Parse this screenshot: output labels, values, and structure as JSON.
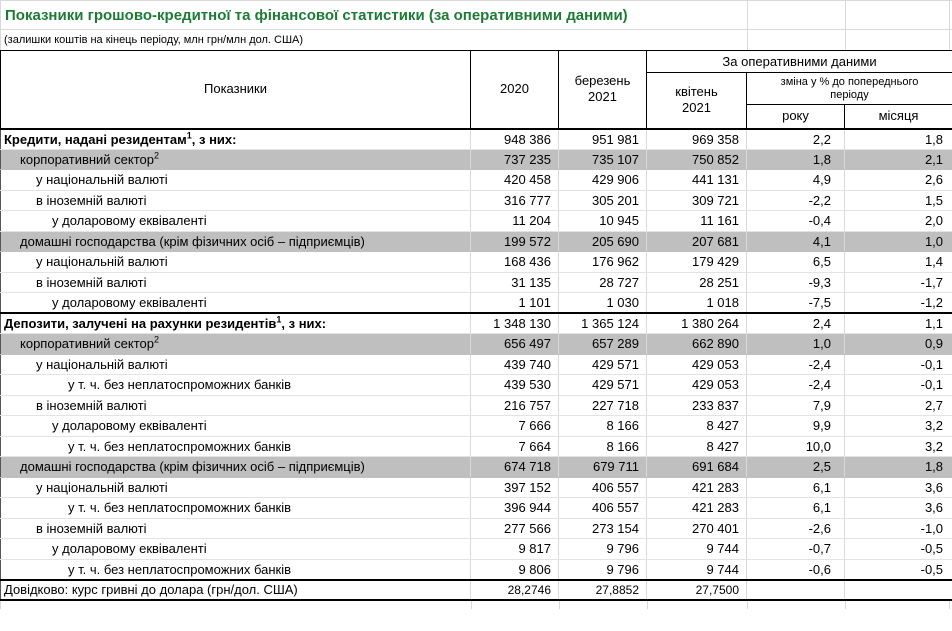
{
  "title": "Показники грошово-кредитної та фінансової статистики (за оперативними даними)",
  "subtitle": "(залишки коштів на кінець періоду, млн грн/млн дол. США)",
  "colors": {
    "title_green": "#1e7b36",
    "band_gray": "#bfbfbf",
    "grid_light": "#d9d9d9",
    "border_dark": "#000000"
  },
  "header": {
    "indicators": "Показники",
    "col_2020": "2020",
    "col_march": "березень\n2021",
    "operational_group": "За оперативними даними",
    "col_april": "квітень\n2021",
    "change_group": "зміна у % до попереднього\nперіоду",
    "col_year": "року",
    "col_month": "місяця"
  },
  "rows": [
    {
      "style": "section",
      "label": "Кредити, надані резидентам",
      "sup": "1",
      "suffix": ", з них:",
      "values": [
        "948 386",
        "951 981",
        "969 358",
        "2,2",
        "1,8"
      ]
    },
    {
      "style": "band",
      "label": "корпоративний сектор",
      "sup": "2",
      "suffix": "",
      "values": [
        "737 235",
        "735 107",
        "750 852",
        "1,8",
        "2,1"
      ]
    },
    {
      "style": "l2",
      "label": "у національній валюті",
      "values": [
        "420 458",
        "429 906",
        "441 131",
        "4,9",
        "2,6"
      ]
    },
    {
      "style": "l2",
      "label": "в іноземній валюті",
      "values": [
        "316 777",
        "305 201",
        "309 721",
        "-2,2",
        "1,5"
      ]
    },
    {
      "style": "l3",
      "label": "у доларовому еквіваленті",
      "values": [
        "11 204",
        "10 945",
        "11 161",
        "-0,4",
        "2,0"
      ]
    },
    {
      "style": "band",
      "label": "домашні господарства (крім фізичних осіб – підприємців)",
      "values": [
        "199 572",
        "205 690",
        "207 681",
        "4,1",
        "1,0"
      ]
    },
    {
      "style": "l2",
      "label": "у національній валюті",
      "values": [
        "168 436",
        "176 962",
        "179 429",
        "6,5",
        "1,4"
      ]
    },
    {
      "style": "l2",
      "label": "в іноземній валюті",
      "values": [
        "31 135",
        "28 727",
        "28 251",
        "-9,3",
        "-1,7"
      ]
    },
    {
      "style": "l3",
      "label": "у доларовому еквіваленті",
      "values": [
        "1 101",
        "1 030",
        "1 018",
        "-7,5",
        "-1,2"
      ]
    },
    {
      "style": "section",
      "label": "Депозити, залучені на рахунки резидентів",
      "sup": "1",
      "suffix": ", з них:",
      "values": [
        "1 348 130",
        "1 365 124",
        "1 380 264",
        "2,4",
        "1,1"
      ]
    },
    {
      "style": "band",
      "label": "корпоративний сектор",
      "sup": "2",
      "suffix": "",
      "values": [
        "656 497",
        "657 289",
        "662 890",
        "1,0",
        "0,9"
      ]
    },
    {
      "style": "l2",
      "label": "у національній валюті",
      "values": [
        "439 740",
        "429 571",
        "429 053",
        "-2,4",
        "-0,1"
      ]
    },
    {
      "style": "l4",
      "label": "у т. ч. без неплатоспроможних банків",
      "values": [
        "439 530",
        "429 571",
        "429 053",
        "-2,4",
        "-0,1"
      ]
    },
    {
      "style": "l2",
      "label": "в іноземній валюті",
      "values": [
        "216 757",
        "227 718",
        "233 837",
        "7,9",
        "2,7"
      ]
    },
    {
      "style": "l3",
      "label": "у доларовому еквіваленті",
      "values": [
        "7 666",
        "8 166",
        "8 427",
        "9,9",
        "3,2"
      ]
    },
    {
      "style": "l4",
      "label": "у т. ч. без неплатоспроможних банків",
      "values": [
        "7 664",
        "8 166",
        "8 427",
        "10,0",
        "3,2"
      ]
    },
    {
      "style": "band",
      "label": "домашні господарства (крім фізичних осіб – підприємців)",
      "values": [
        "674 718",
        "679 711",
        "691 684",
        "2,5",
        "1,8"
      ]
    },
    {
      "style": "l2",
      "label": "у національній валюті",
      "values": [
        "397 152",
        "406 557",
        "421 283",
        "6,1",
        "3,6"
      ]
    },
    {
      "style": "l4",
      "label": "у т. ч. без неплатоспроможних банків",
      "values": [
        "396 944",
        "406 557",
        "421 283",
        "6,1",
        "3,6"
      ]
    },
    {
      "style": "l2",
      "label": "в іноземній валюті",
      "values": [
        "277 566",
        "273 154",
        "270 401",
        "-2,6",
        "-1,0"
      ]
    },
    {
      "style": "l3",
      "label": "у доларовому еквіваленті",
      "values": [
        "9 817",
        "9 796",
        "9 744",
        "-0,7",
        "-0,5"
      ]
    },
    {
      "style": "l4",
      "label": "у т. ч. без неплатоспроможних банків",
      "values": [
        "9 806",
        "9 796",
        "9 744",
        "-0,6",
        "-0,5"
      ]
    },
    {
      "style": "ref",
      "label": "Довідково: курс гривні до долара (грн/дол. США)",
      "values": [
        "28,2746",
        "27,8852",
        "27,7500",
        "",
        ""
      ]
    }
  ]
}
